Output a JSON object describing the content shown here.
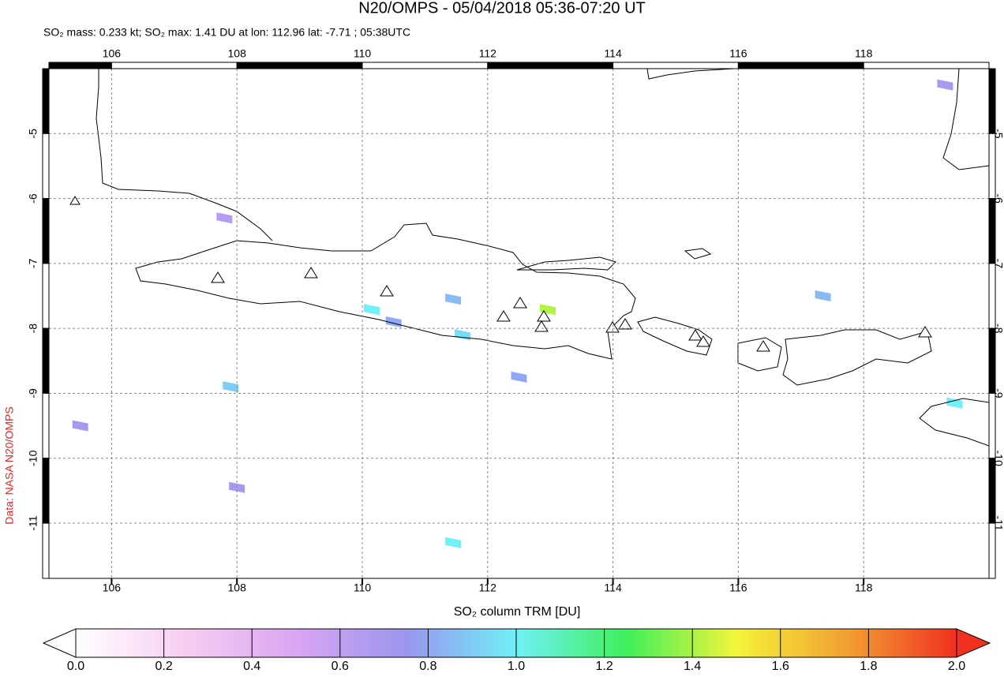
{
  "chart_data": {
    "type": "map",
    "title": "N20/OMPS - 05/04/2018 05:36-07:20 UT",
    "subtitle": "SO₂ mass: 0.233 kt; SO₂ max: 1.41 DU at lon: 112.96 lat: -7.71 ; 05:38UTC",
    "credit": "Data: NASA N20/OMPS",
    "colorbar_label": "SO₂ column TRM [DU]",
    "xlim": [
      105,
      120
    ],
    "ylim": [
      -11.85,
      -4.0
    ],
    "xticks": [
      106,
      108,
      110,
      112,
      114,
      116,
      118
    ],
    "yticks": [
      -5,
      -6,
      -7,
      -8,
      -9,
      -10,
      -11
    ],
    "grid": true,
    "colorbar_lim": [
      0,
      2
    ],
    "colorbar_ticks": [
      {
        "value": 0,
        "label": "0.0"
      },
      {
        "value": 0.2,
        "label": "0.2"
      },
      {
        "value": 0.4,
        "label": "0.4"
      },
      {
        "value": 0.6,
        "label": "0.6"
      },
      {
        "value": 0.8,
        "label": "0.8"
      },
      {
        "value": 1.0,
        "label": "1.0"
      },
      {
        "value": 1.2,
        "label": "1.2"
      },
      {
        "value": 1.4,
        "label": "1.4"
      },
      {
        "value": 1.6,
        "label": "1.6"
      },
      {
        "value": 1.8,
        "label": "1.8"
      },
      {
        "value": 2.0,
        "label": "2.0"
      }
    ],
    "colormap": [
      "#ffffff",
      "#f7cdf2",
      "#d9a6f2",
      "#9a96f0",
      "#70f0f8",
      "#3ef05a",
      "#f4f43a",
      "#f2a032",
      "#f03020"
    ],
    "pixels": {
      "lon": [
        112.96,
        110.15,
        111.6,
        111.45,
        112.5,
        107.9,
        111.45,
        119.45,
        117.35,
        107.8,
        105.5,
        108.0,
        110.5,
        119.3
      ],
      "lat": [
        -7.71,
        -7.71,
        -8.1,
        -7.55,
        -8.75,
        -8.9,
        -11.3,
        -9.15,
        -7.5,
        -6.3,
        -9.5,
        -10.45,
        -7.9,
        -4.25
      ],
      "values": [
        1.41,
        1.0,
        0.95,
        0.85,
        0.8,
        0.9,
        1.0,
        1.0,
        0.85,
        0.65,
        0.7,
        0.7,
        0.8,
        0.7
      ]
    }
  }
}
